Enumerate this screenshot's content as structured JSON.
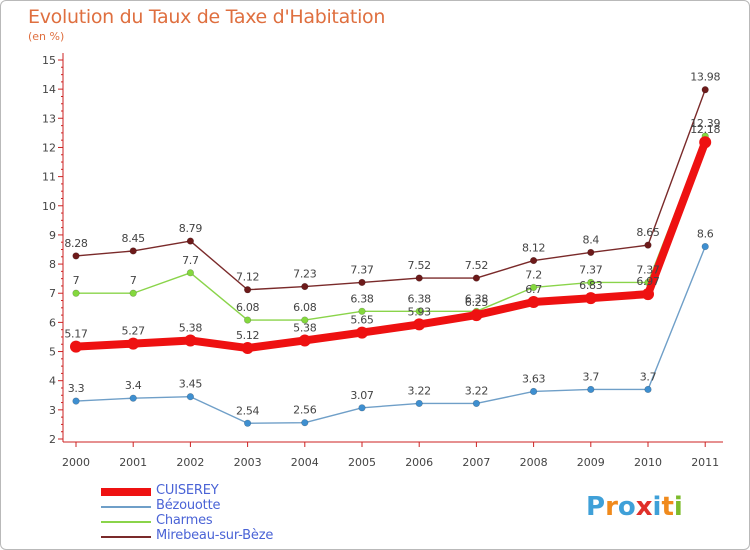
{
  "title": "Evolution du Taux de Taxe d'Habitation",
  "subtitle": "(en %)",
  "brand": {
    "text": "Proxiti",
    "letter_colors": [
      "#3fa0d8",
      "#f08a1c",
      "#3fa0d8",
      "#e0302a",
      "#3fa0d8",
      "#f08a1c",
      "#7dbb2c"
    ]
  },
  "chart_data": {
    "type": "line",
    "x": [
      "2000",
      "2001",
      "2002",
      "2003",
      "2004",
      "2005",
      "2006",
      "2007",
      "2008",
      "2009",
      "2010",
      "2011"
    ],
    "ylim": [
      2,
      15
    ],
    "y_ticks": [
      2,
      3,
      4,
      5,
      6,
      7,
      8,
      9,
      10,
      11,
      12,
      13,
      14,
      15
    ],
    "grid": false,
    "legend_position": "bottom-left",
    "series": [
      {
        "name": "Mirebeau-sur-Bèze",
        "color": "#6d1a1a",
        "line_color": "#7a2a2a",
        "values": [
          8.28,
          8.45,
          8.79,
          7.12,
          7.23,
          7.37,
          7.52,
          7.52,
          8.12,
          8.4,
          8.65,
          13.98
        ],
        "labels": [
          "8.28",
          "8.45",
          "8.79",
          "7.12",
          "7.23",
          "7.37",
          "7.52",
          "7.52",
          "8.12",
          "8.4",
          "8.65",
          "13.98"
        ]
      },
      {
        "name": "Charmes",
        "color": "#84d83e",
        "line_color": "#8ad44a",
        "values": [
          7,
          7,
          7.7,
          6.08,
          6.08,
          6.38,
          6.38,
          6.38,
          7.2,
          7.37,
          7.37,
          12.39
        ],
        "labels": [
          "7",
          "7",
          "7.7",
          "6.08",
          "6.08",
          "6.38",
          "6.38",
          "6.38",
          "7.2",
          "7.37",
          "7.37",
          "12.39"
        ]
      },
      {
        "name": "Bézouotte",
        "color": "#3e8fd0",
        "line_color": "#6f9fc8",
        "values": [
          3.3,
          3.4,
          3.45,
          2.54,
          2.56,
          3.07,
          3.22,
          3.22,
          3.63,
          3.7,
          3.7,
          8.6
        ],
        "labels": [
          "3.3",
          "3.4",
          "3.45",
          "2.54",
          "2.56",
          "3.07",
          "3.22",
          "3.22",
          "3.63",
          "3.7",
          "3.7",
          "8.6"
        ]
      },
      {
        "name": "CUISEREY",
        "color": "#ee1111",
        "line_color": "#ee1111",
        "values": [
          5.17,
          5.27,
          5.38,
          5.12,
          5.38,
          5.65,
          5.93,
          6.25,
          6.7,
          6.83,
          6.97,
          12.18
        ],
        "labels": [
          "5.17",
          "5.27",
          "5.38",
          "5.12",
          "5.38",
          "5.65",
          "5.93",
          "6.25",
          "6.7",
          "6.83",
          "6.97",
          "12.18"
        ]
      }
    ],
    "legend": [
      "CUISEREY",
      "Bézouotte",
      "Charmes",
      "Mirebeau-sur-Bèze"
    ]
  }
}
